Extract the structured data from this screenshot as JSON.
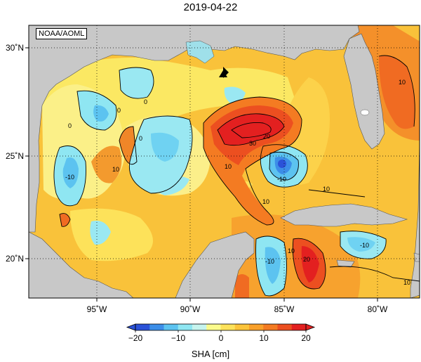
{
  "title": "2019-04-22",
  "credit": "NOAA/AOML",
  "colorbar": {
    "label": "SHA [cm]",
    "ticks": [
      "−20",
      "−10",
      "0",
      "10",
      "20"
    ],
    "colors": [
      "#2b52d8",
      "#3c8ee8",
      "#5cc3f0",
      "#8fe6f2",
      "#c6f4ee",
      "#fbfb8c",
      "#fde25a",
      "#fcc43a",
      "#f9a02a",
      "#f47b22",
      "#ec4f20",
      "#e32020"
    ]
  },
  "map": {
    "lat_ticks": [
      "30˚N",
      "25˚N",
      "20˚N"
    ],
    "lon_ticks": [
      "95˚W",
      "90˚W",
      "85˚W",
      "80˚W"
    ],
    "contour_labels": [
      "0",
      "0",
      "0",
      "0",
      "10",
      "10",
      "-10",
      "-10",
      "20",
      "30",
      "10",
      "-10",
      "10",
      "10",
      "20",
      "10",
      "10",
      "-10"
    ],
    "land_color": "#c8c8c8",
    "ocean_base_color": "#f8cc40"
  }
}
